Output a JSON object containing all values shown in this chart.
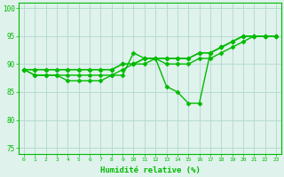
{
  "x": [
    0,
    1,
    2,
    3,
    4,
    5,
    6,
    7,
    8,
    9,
    10,
    11,
    12,
    13,
    14,
    15,
    16,
    17,
    18,
    19,
    20,
    21,
    22,
    23
  ],
  "line1": [
    89,
    88,
    88,
    88,
    87,
    87,
    87,
    87,
    88,
    88,
    92,
    91,
    91,
    86,
    85,
    83,
    83,
    92,
    93,
    94,
    95,
    95,
    95,
    95
  ],
  "line2": [
    89,
    88,
    88,
    88,
    88,
    88,
    88,
    88,
    88,
    89,
    90,
    91,
    91,
    90,
    90,
    90,
    91,
    91,
    92,
    93,
    94,
    95,
    95,
    95
  ],
  "line3": [
    89,
    89,
    89,
    89,
    89,
    89,
    89,
    89,
    89,
    90,
    90,
    91,
    91,
    91,
    91,
    91,
    92,
    92,
    93,
    94,
    95,
    95,
    95,
    95
  ],
  "line4": [
    89,
    89,
    89,
    89,
    89,
    89,
    89,
    89,
    89,
    90,
    90,
    90,
    91,
    91,
    91,
    91,
    92,
    92,
    93,
    94,
    95,
    95,
    95,
    95
  ],
  "xlabel": "Humidité relative (%)",
  "ylim": [
    74,
    101
  ],
  "yticks": [
    75,
    80,
    85,
    90,
    95,
    100
  ],
  "xtick_labels": [
    "0",
    "1",
    "2",
    "3",
    "4",
    "5",
    "6",
    "7",
    "8",
    "9",
    "10",
    "11",
    "12",
    "13",
    "14",
    "15",
    "16",
    "17",
    "18",
    "19",
    "20",
    "21",
    "22",
    "23"
  ],
  "line_color": "#00bb00",
  "bg_color": "#dff2ec",
  "grid_color": "#b0d8cc",
  "marker": "D",
  "marker_size": 2.5,
  "linewidth": 1.0
}
